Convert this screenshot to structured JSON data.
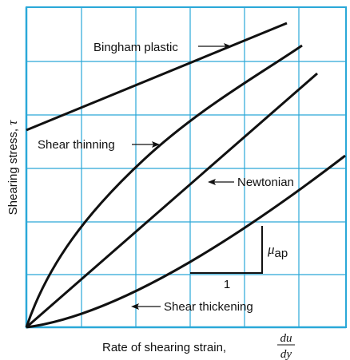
{
  "colors": {
    "grid": "#2aa8d8",
    "curve": "#111111",
    "background": "#ffffff"
  },
  "axes": {
    "y_label": "Shearing stress, ",
    "y_symbol": "τ",
    "x_label": "Rate of shearing strain, ",
    "x_fraction_numerator": "du",
    "x_fraction_denominator": "dy"
  },
  "curves": {
    "bingham": "Bingham plastic",
    "thinning": "Shear thinning",
    "newtonian": "Newtonian",
    "thickening": "Shear thickening"
  },
  "slope_triangle": {
    "run_label": "1",
    "rise_symbol": "μ",
    "rise_subscript": "ap"
  }
}
